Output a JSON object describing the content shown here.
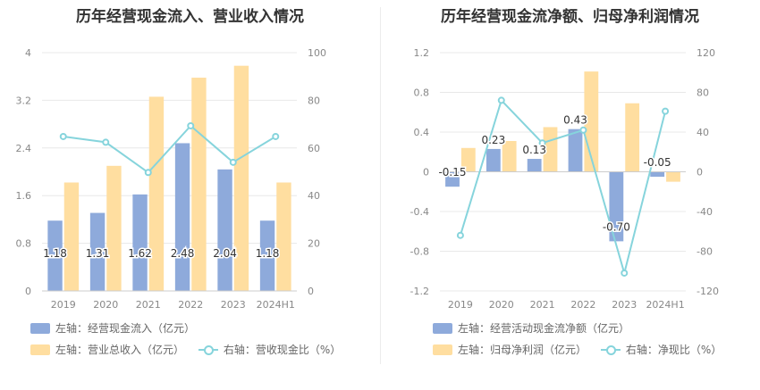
{
  "chart_data": [
    {
      "type": "bar",
      "title": "历年经营现金流入、营业收入情况",
      "categories": [
        "2019",
        "2020",
        "2021",
        "2022",
        "2023",
        "2024H1"
      ],
      "left_axis": {
        "ylim": [
          0,
          4
        ],
        "ticks": [
          "0",
          "0.8",
          "1.6",
          "2.4",
          "3.2",
          "4"
        ]
      },
      "right_axis": {
        "ylim": [
          0,
          100
        ],
        "ticks": [
          "0",
          "20",
          "40",
          "60",
          "80",
          "100"
        ]
      },
      "series": [
        {
          "name": "左轴：经营现金流入（亿元）",
          "axis": "left",
          "kind": "bar",
          "color": "#8eaadb",
          "values": [
            1.18,
            1.31,
            1.62,
            2.48,
            2.04,
            1.18
          ],
          "labels": [
            "1.18",
            "1.31",
            "1.62",
            "2.48",
            "2.04",
            "1.18"
          ]
        },
        {
          "name": "左轴：营业总收入（亿元）",
          "axis": "left",
          "kind": "bar",
          "color": "#ffdea0",
          "values": [
            1.82,
            2.1,
            3.26,
            3.58,
            3.78,
            1.82
          ]
        },
        {
          "name": "右轴：营收现金比（%）",
          "axis": "right",
          "kind": "line",
          "color": "#86d4dc",
          "values": [
            64.8,
            62.4,
            49.7,
            69.3,
            54.0,
            64.8
          ]
        }
      ],
      "grid": true,
      "legend_position": "bottom-left"
    },
    {
      "type": "bar",
      "title": "历年经营现金流净额、归母净利润情况",
      "categories": [
        "2019",
        "2020",
        "2021",
        "2022",
        "2023",
        "2024H1"
      ],
      "left_axis": {
        "ylim": [
          -1.2,
          1.2
        ],
        "ticks": [
          "-1.2",
          "-0.8",
          "-0.4",
          "0",
          "0.4",
          "0.8",
          "1.2"
        ]
      },
      "right_axis": {
        "ylim": [
          -120,
          120
        ],
        "ticks": [
          "-120",
          "-80",
          "-40",
          "0",
          "40",
          "80",
          "120"
        ]
      },
      "series": [
        {
          "name": "左轴：经营活动现金流净额（亿元）",
          "axis": "left",
          "kind": "bar",
          "color": "#8eaadb",
          "values": [
            -0.15,
            0.23,
            0.13,
            0.43,
            -0.7,
            -0.05
          ],
          "labels": [
            "-0.15",
            "0.23",
            "0.13",
            "0.43",
            "-0.70",
            "-0.05"
          ]
        },
        {
          "name": "左轴：归母净利润（亿元）",
          "axis": "left",
          "kind": "bar",
          "color": "#ffdea0",
          "values": [
            0.24,
            0.31,
            0.45,
            1.01,
            0.69,
            -0.1
          ]
        },
        {
          "name": "右轴：净现比（%）",
          "axis": "right",
          "kind": "line",
          "color": "#86d4dc",
          "values": [
            -64,
            72,
            29,
            42,
            -102,
            61
          ]
        }
      ],
      "grid": true,
      "legend_position": "bottom-left"
    }
  ]
}
